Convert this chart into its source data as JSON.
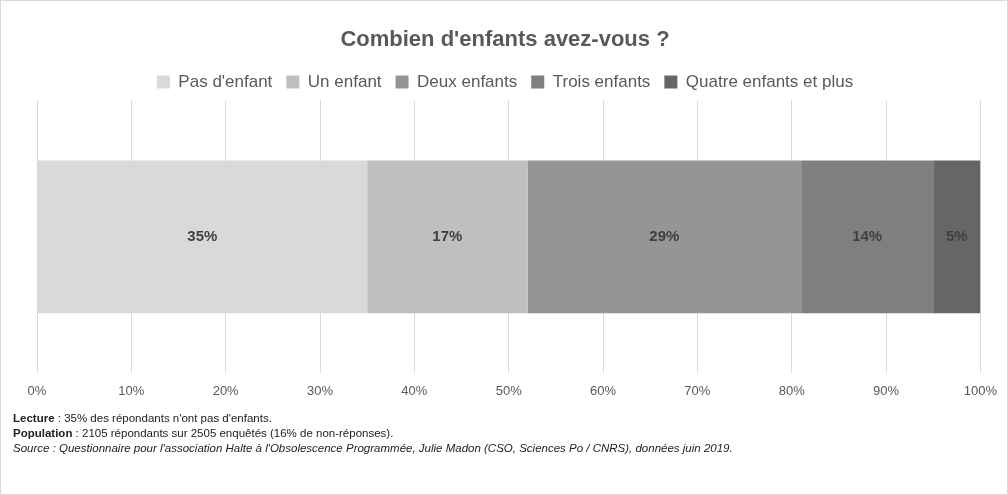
{
  "chart_data": {
    "type": "bar",
    "orientation": "horizontal",
    "stacked": true,
    "title": "Combien d'enfants avez-vous ?",
    "categories": [
      null
    ],
    "series": [
      {
        "name": "Pas d'enfant",
        "color": "#d9d9d9",
        "values": [
          35
        ],
        "value_labels": [
          "35%"
        ]
      },
      {
        "name": "Un enfant",
        "color": "#bfbfbf",
        "values": [
          17
        ],
        "value_labels": [
          "17%"
        ]
      },
      {
        "name": "Deux enfants",
        "color": "#959595",
        "values": [
          29
        ],
        "value_labels": [
          "29%"
        ]
      },
      {
        "name": "Trois enfants",
        "color": "#7f7f7f",
        "values": [
          14
        ],
        "value_labels": [
          "14%"
        ]
      },
      {
        "name": "Quatre enfants et plus",
        "color": "#666666",
        "values": [
          5
        ],
        "value_labels": [
          "5%"
        ]
      }
    ],
    "xlim": [
      0,
      100
    ],
    "xticks": [
      {
        "value": 0,
        "label": "0%"
      },
      {
        "value": 10,
        "label": "10%"
      },
      {
        "value": 20,
        "label": "20%"
      },
      {
        "value": 30,
        "label": "30%"
      },
      {
        "value": 40,
        "label": "40%"
      },
      {
        "value": 50,
        "label": "50%"
      },
      {
        "value": 60,
        "label": "60%"
      },
      {
        "value": 70,
        "label": "70%"
      },
      {
        "value": 80,
        "label": "80%"
      },
      {
        "value": 90,
        "label": "90%"
      },
      {
        "value": 100,
        "label": "100%"
      }
    ],
    "grid": "x",
    "legend": "top",
    "tick_labels": "x",
    "annotations": [
      "Lecture : 35% des répondants n'ont pas d'enfants.",
      "Population : 2105 répondants sur 2505 enquêtés (16% de non-réponses).",
      "Source : Questionnaire pour l'association Halte à l'Obsolescence Programmée, Julie Madon (CSO, Sciences Po / CNRS), données juin 2019."
    ]
  }
}
